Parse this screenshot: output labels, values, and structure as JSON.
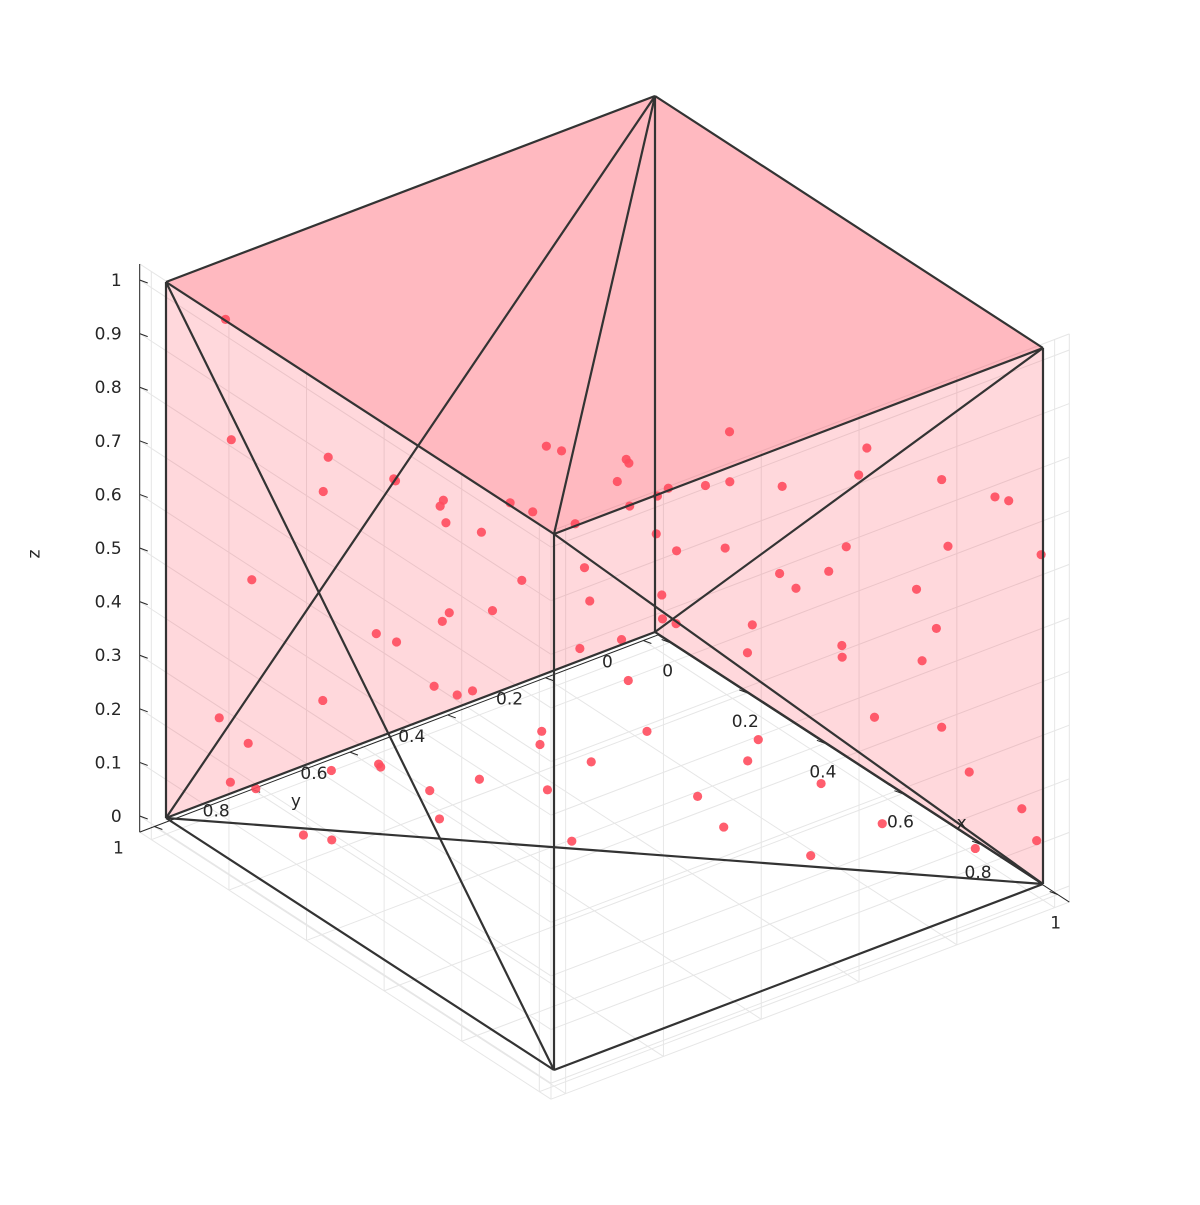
{
  "chart_data": {
    "type": "scatter3d",
    "title": "",
    "xlabel": "x",
    "ylabel": "y",
    "zlabel": "z",
    "xlim": [
      0,
      1
    ],
    "ylim": [
      0,
      1
    ],
    "zlim": [
      0,
      1
    ],
    "grid": true,
    "xticks": [
      {
        "value": 0,
        "label": "0"
      },
      {
        "value": 0.2,
        "label": "0.2"
      },
      {
        "value": 0.4,
        "label": "0.4"
      },
      {
        "value": 0.6,
        "label": "0.6"
      },
      {
        "value": 0.8,
        "label": "0.8"
      },
      {
        "value": 1,
        "label": "1"
      }
    ],
    "yticks": [
      {
        "value": 0,
        "label": "0"
      },
      {
        "value": 0.2,
        "label": "0.2"
      },
      {
        "value": 0.4,
        "label": "0.4"
      },
      {
        "value": 0.6,
        "label": "0.6"
      },
      {
        "value": 0.8,
        "label": "0.8"
      },
      {
        "value": 1,
        "label": "1"
      }
    ],
    "zticks": [
      {
        "value": 0,
        "label": "0"
      },
      {
        "value": 0.1,
        "label": "0.1"
      },
      {
        "value": 0.2,
        "label": "0.2"
      },
      {
        "value": 0.3,
        "label": "0.3"
      },
      {
        "value": 0.4,
        "label": "0.4"
      },
      {
        "value": 0.5,
        "label": "0.5"
      },
      {
        "value": 0.6,
        "label": "0.6"
      },
      {
        "value": 0.7,
        "label": "0.7"
      },
      {
        "value": 0.8,
        "label": "0.8"
      },
      {
        "value": 0.9,
        "label": "0.9"
      },
      {
        "value": 1,
        "label": "1"
      }
    ],
    "colors": {
      "face": "#ff4d5e",
      "edge": "#333333",
      "points": "#ff4d5e",
      "grid": "#e6e6e6",
      "axis": "#262626"
    },
    "face_alpha": 0.45,
    "vertices": [
      [
        0,
        0,
        0
      ],
      [
        1,
        0,
        0
      ],
      [
        1,
        1,
        0
      ],
      [
        0,
        1,
        0
      ],
      [
        0,
        0,
        1
      ],
      [
        1,
        0,
        1
      ],
      [
        1,
        1,
        1
      ],
      [
        0,
        1,
        1
      ]
    ],
    "edges": [
      [
        0,
        1
      ],
      [
        1,
        2
      ],
      [
        2,
        3
      ],
      [
        3,
        0
      ],
      [
        4,
        5
      ],
      [
        5,
        6
      ],
      [
        6,
        7
      ],
      [
        7,
        4
      ],
      [
        0,
        4
      ],
      [
        1,
        5
      ],
      [
        2,
        6
      ],
      [
        3,
        7
      ],
      [
        1,
        3
      ],
      [
        4,
        6
      ],
      [
        3,
        4
      ],
      [
        0,
        5
      ],
      [
        1,
        6
      ],
      [
        2,
        7
      ]
    ],
    "points": [
      [
        0.016,
        0.891,
        0.9
      ],
      [
        0.022,
        0.842,
        0.4
      ],
      [
        0.041,
        0.899,
        0.69
      ],
      [
        0.083,
        0.957,
        0.211
      ],
      [
        0.106,
        0.916,
        0.16
      ],
      [
        0.181,
        0.823,
        0.243
      ],
      [
        0.217,
        0.834,
        0.133
      ],
      [
        0.266,
        0.772,
        0.141
      ],
      [
        0.394,
        0.645,
        0.449
      ],
      [
        0.357,
        0.704,
        0.448
      ],
      [
        0.451,
        0.58,
        0.76
      ],
      [
        0.496,
        0.527,
        0.474
      ],
      [
        0.504,
        0.591,
        0.78
      ],
      [
        0.556,
        0.5,
        0.757
      ],
      [
        0.546,
        0.485,
        0.66
      ],
      [
        0.56,
        0.499,
        0.346
      ],
      [
        0.6,
        0.433,
        0.448
      ],
      [
        0.673,
        0.335,
        0.446
      ],
      [
        0.771,
        0.229,
        0.395
      ],
      [
        0.856,
        0.133,
        0.395
      ],
      [
        0.946,
        0.108,
        0.221
      ],
      [
        0.982,
        0.029,
        0.142
      ],
      [
        0.99,
        0.005,
        0.078
      ],
      [
        0.915,
        0.071,
        0.051
      ],
      [
        0.81,
        0.178,
        0.085
      ],
      [
        0.724,
        0.256,
        0.012
      ],
      [
        0.622,
        0.353,
        0.051
      ],
      [
        0.648,
        0.303,
        0.209
      ],
      [
        0.52,
        0.429,
        0.208
      ],
      [
        0.405,
        0.553,
        0.197
      ],
      [
        0.298,
        0.641,
        0.245
      ],
      [
        0.235,
        0.715,
        0.34
      ],
      [
        0.289,
        0.681,
        0.271
      ],
      [
        0.266,
        0.781,
        0.393
      ],
      [
        0.329,
        0.696,
        0.416
      ],
      [
        0.364,
        0.662,
        0.291
      ],
      [
        0.427,
        0.574,
        0.19
      ],
      [
        0.491,
        0.52,
        0.169
      ],
      [
        0.451,
        0.528,
        0.005
      ],
      [
        0.349,
        0.636,
        0.11
      ],
      [
        0.323,
        0.697,
        0.045
      ],
      [
        0.218,
        0.834,
        0.004
      ],
      [
        0.118,
        0.91,
        0.079
      ],
      [
        0.079,
        0.931,
        0.08
      ],
      [
        0.184,
        0.865,
        0.008
      ],
      [
        0.262,
        0.773,
        0.145
      ],
      [
        0.318,
        0.713,
        0.101
      ],
      [
        0.416,
        0.55,
        0.092
      ],
      [
        0.59,
        0.381,
        0.103
      ],
      [
        0.675,
        0.346,
        0.197
      ],
      [
        0.752,
        0.257,
        0.16
      ],
      [
        0.814,
        0.197,
        0.292
      ],
      [
        0.88,
        0.112,
        0.275
      ],
      [
        0.884,
        0.126,
        0.466
      ],
      [
        0.779,
        0.227,
        0.604
      ],
      [
        0.721,
        0.312,
        0.719
      ],
      [
        0.673,
        0.381,
        0.729
      ],
      [
        0.632,
        0.358,
        0.578
      ],
      [
        0.698,
        0.299,
        0.541
      ],
      [
        0.754,
        0.243,
        0.552
      ],
      [
        0.59,
        0.424,
        0.576
      ],
      [
        0.456,
        0.506,
        0.51
      ],
      [
        0.365,
        0.562,
        0.463
      ],
      [
        0.466,
        0.533,
        0.606
      ],
      [
        0.559,
        0.441,
        0.599
      ],
      [
        0.562,
        0.441,
        0.671
      ],
      [
        0.509,
        0.481,
        0.687
      ],
      [
        0.525,
        0.47,
        0.725
      ],
      [
        0.619,
        0.388,
        0.699
      ],
      [
        0.671,
        0.38,
        0.821
      ],
      [
        0.772,
        0.196,
        0.724
      ],
      [
        0.817,
        0.215,
        0.802
      ],
      [
        0.88,
        0.112,
        0.737
      ],
      [
        0.938,
        0.049,
        0.71
      ],
      [
        0.962,
        0.04,
        0.711
      ],
      [
        0.999,
        0.003,
        0.615
      ],
      [
        0.9,
        0.115,
        0.623
      ],
      [
        0.853,
        0.142,
        0.53
      ],
      [
        0.779,
        0.236,
        0.423
      ],
      [
        0.749,
        0.306,
        0.54
      ],
      [
        0.663,
        0.337,
        0.39
      ],
      [
        0.594,
        0.456,
        0.462
      ],
      [
        0.525,
        0.485,
        0.401
      ],
      [
        0.497,
        0.548,
        0.393
      ],
      [
        0.567,
        0.436,
        0.487
      ],
      [
        0.604,
        0.452,
        0.709
      ],
      [
        0.436,
        0.596,
        0.636
      ],
      [
        0.408,
        0.62,
        0.648
      ],
      [
        0.327,
        0.687,
        0.596
      ],
      [
        0.338,
        0.701,
        0.648
      ],
      [
        0.363,
        0.643,
        0.58
      ],
      [
        0.331,
        0.702,
        0.634
      ],
      [
        0.279,
        0.752,
        0.674
      ],
      [
        0.287,
        0.762,
        0.685
      ],
      [
        0.2,
        0.827,
        0.707
      ],
      [
        0.191,
        0.83,
        0.64
      ]
    ]
  }
}
